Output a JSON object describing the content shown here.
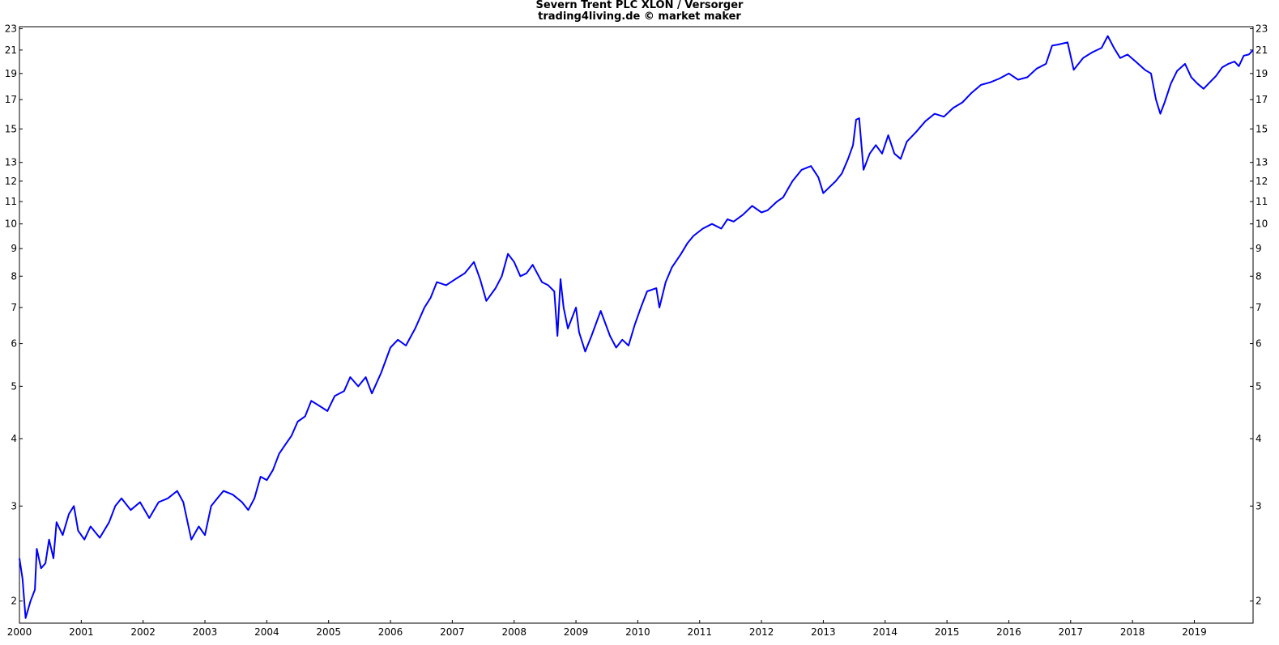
{
  "chart_data": {
    "type": "line",
    "title": "Severn Trent PLC XLON / Versorger",
    "subtitle": "trading4living.de © market maker",
    "xlabel": "",
    "ylabel": "",
    "y_scale": "log",
    "ylim": [
      1.82,
      23.2
    ],
    "xlim": [
      2000.0,
      2019.95
    ],
    "grid": false,
    "legend": "none",
    "line_color": "#0000ff",
    "y_ticks": [
      2,
      3,
      4,
      5,
      6,
      7,
      8,
      9,
      10,
      11,
      12,
      13,
      15,
      17,
      19,
      21,
      23
    ],
    "x_ticks": [
      {
        "label": "2000",
        "value": 2000
      },
      {
        "label": "2001",
        "value": 2001
      },
      {
        "label": "2002",
        "value": 2002
      },
      {
        "label": "2003",
        "value": 2003
      },
      {
        "label": "2004",
        "value": 2004
      },
      {
        "label": "2005",
        "value": 2005
      },
      {
        "label": "2006",
        "value": 2006
      },
      {
        "label": "2007",
        "value": 2007
      },
      {
        "label": "2008",
        "value": 2008
      },
      {
        "label": "2009",
        "value": 2009
      },
      {
        "label": "2010",
        "value": 2010
      },
      {
        "label": "2011",
        "value": 2011
      },
      {
        "label": "2012",
        "value": 2012
      },
      {
        "label": "2013",
        "value": 2013
      },
      {
        "label": "2014",
        "value": 2014
      },
      {
        "label": "2015",
        "value": 2015
      },
      {
        "label": "2016",
        "value": 2016
      },
      {
        "label": "2017",
        "value": 2017
      },
      {
        "label": "2018",
        "value": 2018
      },
      {
        "label": "2019",
        "value": 2019
      }
    ],
    "series": [
      {
        "values": [
          [
            2000.0,
            2.4
          ],
          [
            2000.05,
            2.2
          ],
          [
            2000.1,
            1.86
          ],
          [
            2000.18,
            2.0
          ],
          [
            2000.25,
            2.1
          ],
          [
            2000.28,
            2.5
          ],
          [
            2000.35,
            2.3
          ],
          [
            2000.42,
            2.35
          ],
          [
            2000.48,
            2.6
          ],
          [
            2000.55,
            2.4
          ],
          [
            2000.6,
            2.8
          ],
          [
            2000.7,
            2.65
          ],
          [
            2000.8,
            2.9
          ],
          [
            2000.88,
            3.0
          ],
          [
            2000.95,
            2.7
          ],
          [
            2001.05,
            2.6
          ],
          [
            2001.15,
            2.75
          ],
          [
            2001.3,
            2.62
          ],
          [
            2001.45,
            2.8
          ],
          [
            2001.55,
            3.0
          ],
          [
            2001.65,
            3.1
          ],
          [
            2001.8,
            2.95
          ],
          [
            2001.95,
            3.05
          ],
          [
            2002.1,
            2.85
          ],
          [
            2002.25,
            3.05
          ],
          [
            2002.4,
            3.1
          ],
          [
            2002.55,
            3.2
          ],
          [
            2002.65,
            3.05
          ],
          [
            2002.72,
            2.8
          ],
          [
            2002.78,
            2.6
          ],
          [
            2002.9,
            2.75
          ],
          [
            2003.0,
            2.65
          ],
          [
            2003.1,
            3.0
          ],
          [
            2003.2,
            3.1
          ],
          [
            2003.3,
            3.2
          ],
          [
            2003.45,
            3.15
          ],
          [
            2003.6,
            3.05
          ],
          [
            2003.7,
            2.95
          ],
          [
            2003.8,
            3.1
          ],
          [
            2003.9,
            3.4
          ],
          [
            2004.0,
            3.35
          ],
          [
            2004.1,
            3.5
          ],
          [
            2004.2,
            3.75
          ],
          [
            2004.3,
            3.9
          ],
          [
            2004.4,
            4.05
          ],
          [
            2004.5,
            4.3
          ],
          [
            2004.62,
            4.4
          ],
          [
            2004.72,
            4.7
          ],
          [
            2004.85,
            4.6
          ],
          [
            2004.98,
            4.5
          ],
          [
            2005.1,
            4.8
          ],
          [
            2005.25,
            4.9
          ],
          [
            2005.35,
            5.2
          ],
          [
            2005.48,
            5.0
          ],
          [
            2005.6,
            5.2
          ],
          [
            2005.7,
            4.85
          ],
          [
            2005.85,
            5.3
          ],
          [
            2006.0,
            5.9
          ],
          [
            2006.12,
            6.1
          ],
          [
            2006.25,
            5.95
          ],
          [
            2006.4,
            6.4
          ],
          [
            2006.55,
            7.0
          ],
          [
            2006.65,
            7.3
          ],
          [
            2006.75,
            7.8
          ],
          [
            2006.9,
            7.7
          ],
          [
            2007.05,
            7.9
          ],
          [
            2007.2,
            8.1
          ],
          [
            2007.35,
            8.5
          ],
          [
            2007.45,
            7.9
          ],
          [
            2007.55,
            7.2
          ],
          [
            2007.7,
            7.6
          ],
          [
            2007.8,
            8.0
          ],
          [
            2007.9,
            8.8
          ],
          [
            2008.0,
            8.5
          ],
          [
            2008.1,
            8.0
          ],
          [
            2008.2,
            8.1
          ],
          [
            2008.3,
            8.4
          ],
          [
            2008.45,
            7.8
          ],
          [
            2008.55,
            7.7
          ],
          [
            2008.65,
            7.5
          ],
          [
            2008.7,
            6.2
          ],
          [
            2008.75,
            7.9
          ],
          [
            2008.8,
            7.0
          ],
          [
            2008.87,
            6.4
          ],
          [
            2009.0,
            7.0
          ],
          [
            2009.05,
            6.3
          ],
          [
            2009.15,
            5.8
          ],
          [
            2009.25,
            6.2
          ],
          [
            2009.4,
            6.9
          ],
          [
            2009.55,
            6.2
          ],
          [
            2009.65,
            5.9
          ],
          [
            2009.75,
            6.1
          ],
          [
            2009.85,
            5.95
          ],
          [
            2009.95,
            6.5
          ],
          [
            2010.05,
            7.0
          ],
          [
            2010.15,
            7.5
          ],
          [
            2010.3,
            7.6
          ],
          [
            2010.35,
            7.0
          ],
          [
            2010.45,
            7.8
          ],
          [
            2010.55,
            8.3
          ],
          [
            2010.7,
            8.8
          ],
          [
            2010.8,
            9.2
          ],
          [
            2010.9,
            9.5
          ],
          [
            2011.05,
            9.8
          ],
          [
            2011.2,
            10.0
          ],
          [
            2011.35,
            9.8
          ],
          [
            2011.45,
            10.2
          ],
          [
            2011.55,
            10.1
          ],
          [
            2011.7,
            10.4
          ],
          [
            2011.85,
            10.8
          ],
          [
            2012.0,
            10.5
          ],
          [
            2012.1,
            10.6
          ],
          [
            2012.25,
            11.0
          ],
          [
            2012.35,
            11.2
          ],
          [
            2012.5,
            12.0
          ],
          [
            2012.65,
            12.6
          ],
          [
            2012.8,
            12.8
          ],
          [
            2012.92,
            12.2
          ],
          [
            2013.0,
            11.4
          ],
          [
            2013.1,
            11.7
          ],
          [
            2013.2,
            12.0
          ],
          [
            2013.3,
            12.4
          ],
          [
            2013.4,
            13.2
          ],
          [
            2013.48,
            14.0
          ],
          [
            2013.53,
            15.6
          ],
          [
            2013.58,
            15.7
          ],
          [
            2013.65,
            12.6
          ],
          [
            2013.75,
            13.5
          ],
          [
            2013.85,
            14.0
          ],
          [
            2013.95,
            13.5
          ],
          [
            2014.05,
            14.6
          ],
          [
            2014.15,
            13.5
          ],
          [
            2014.25,
            13.2
          ],
          [
            2014.35,
            14.2
          ],
          [
            2014.5,
            14.8
          ],
          [
            2014.65,
            15.5
          ],
          [
            2014.8,
            16.0
          ],
          [
            2014.95,
            15.8
          ],
          [
            2015.1,
            16.4
          ],
          [
            2015.25,
            16.8
          ],
          [
            2015.4,
            17.5
          ],
          [
            2015.55,
            18.1
          ],
          [
            2015.7,
            18.3
          ],
          [
            2015.85,
            18.6
          ],
          [
            2016.0,
            19.0
          ],
          [
            2016.15,
            18.5
          ],
          [
            2016.3,
            18.7
          ],
          [
            2016.45,
            19.4
          ],
          [
            2016.6,
            19.8
          ],
          [
            2016.7,
            21.4
          ],
          [
            2016.8,
            21.5
          ],
          [
            2016.95,
            21.7
          ],
          [
            2017.05,
            19.3
          ],
          [
            2017.2,
            20.3
          ],
          [
            2017.35,
            20.8
          ],
          [
            2017.5,
            21.2
          ],
          [
            2017.6,
            22.3
          ],
          [
            2017.7,
            21.2
          ],
          [
            2017.8,
            20.3
          ],
          [
            2017.92,
            20.6
          ],
          [
            2018.05,
            20.0
          ],
          [
            2018.2,
            19.3
          ],
          [
            2018.3,
            19.0
          ],
          [
            2018.38,
            17.0
          ],
          [
            2018.45,
            16.0
          ],
          [
            2018.52,
            16.8
          ],
          [
            2018.62,
            18.2
          ],
          [
            2018.72,
            19.2
          ],
          [
            2018.85,
            19.8
          ],
          [
            2018.95,
            18.7
          ],
          [
            2019.05,
            18.2
          ],
          [
            2019.15,
            17.8
          ],
          [
            2019.25,
            18.3
          ],
          [
            2019.35,
            18.8
          ],
          [
            2019.45,
            19.5
          ],
          [
            2019.55,
            19.8
          ],
          [
            2019.65,
            20.0
          ],
          [
            2019.72,
            19.6
          ],
          [
            2019.8,
            20.5
          ],
          [
            2019.88,
            20.6
          ],
          [
            2019.95,
            21.0
          ]
        ]
      }
    ]
  }
}
